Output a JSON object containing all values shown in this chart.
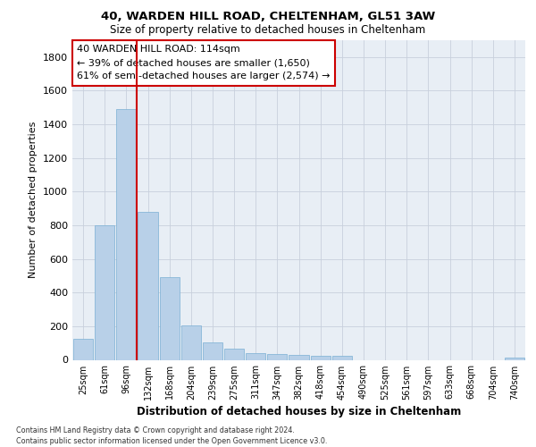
{
  "title1": "40, WARDEN HILL ROAD, CHELTENHAM, GL51 3AW",
  "title2": "Size of property relative to detached houses in Cheltenham",
  "xlabel": "Distribution of detached houses by size in Cheltenham",
  "ylabel": "Number of detached properties",
  "categories": [
    "25sqm",
    "61sqm",
    "96sqm",
    "132sqm",
    "168sqm",
    "204sqm",
    "239sqm",
    "275sqm",
    "311sqm",
    "347sqm",
    "382sqm",
    "418sqm",
    "454sqm",
    "490sqm",
    "525sqm",
    "561sqm",
    "597sqm",
    "633sqm",
    "668sqm",
    "704sqm",
    "740sqm"
  ],
  "values": [
    125,
    800,
    1490,
    880,
    490,
    205,
    105,
    65,
    40,
    35,
    30,
    22,
    25,
    0,
    0,
    0,
    0,
    0,
    0,
    0,
    15
  ],
  "bar_color": "#b8d0e8",
  "bar_edge_color": "#7aafd4",
  "vline_color": "#cc0000",
  "annotation_line1": "40 WARDEN HILL ROAD: 114sqm",
  "annotation_line2": "← 39% of detached houses are smaller (1,650)",
  "annotation_line3": "61% of semi-detached houses are larger (2,574) →",
  "annotation_box_color": "#cc0000",
  "footer1": "Contains HM Land Registry data © Crown copyright and database right 2024.",
  "footer2": "Contains public sector information licensed under the Open Government Licence v3.0.",
  "ylim": [
    0,
    1900
  ],
  "yticks": [
    0,
    200,
    400,
    600,
    800,
    1000,
    1200,
    1400,
    1600,
    1800
  ],
  "grid_color": "#c8d0dc",
  "bg_color": "#e8eef5"
}
